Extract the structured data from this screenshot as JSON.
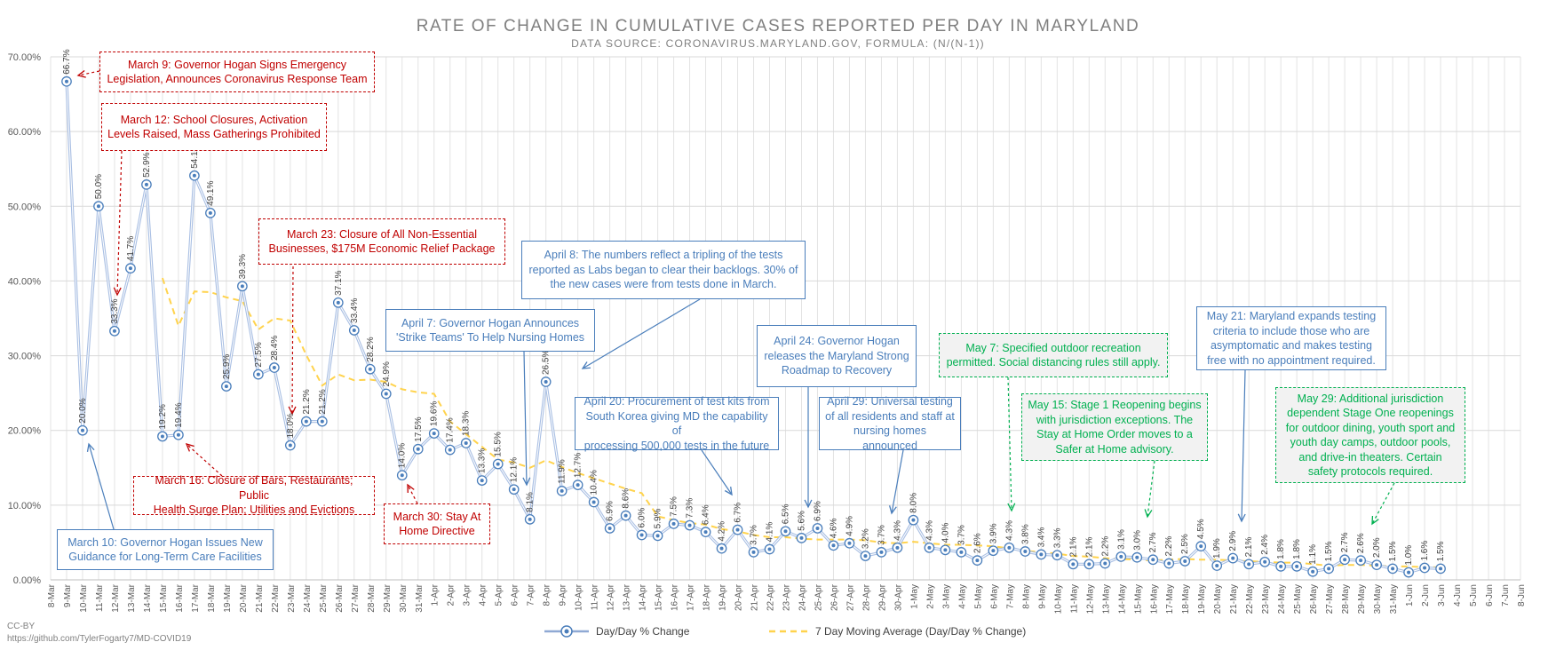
{
  "chart_data": {
    "type": "line",
    "title": "RATE OF CHANGE IN CUMULATIVE CASES REPORTED PER DAY IN MARYLAND",
    "subtitle": "DATA SOURCE: CORONAVIRUS.MARYLAND.GOV, FORMULA: (N/(N-1))",
    "ylim": [
      0,
      70
    ],
    "yticks": [
      "0.00%",
      "10.00%",
      "20.00%",
      "30.00%",
      "40.00%",
      "50.00%",
      "60.00%",
      "70.00%"
    ],
    "grid": true,
    "legend_position": "bottom",
    "categories": [
      "8-Mar",
      "9-Mar",
      "10-Mar",
      "11-Mar",
      "12-Mar",
      "13-Mar",
      "14-Mar",
      "15-Mar",
      "16-Mar",
      "17-Mar",
      "18-Mar",
      "19-Mar",
      "20-Mar",
      "21-Mar",
      "22-Mar",
      "23-Mar",
      "24-Mar",
      "25-Mar",
      "26-Mar",
      "27-Mar",
      "28-Mar",
      "29-Mar",
      "30-Mar",
      "31-Mar",
      "1-Apr",
      "2-Apr",
      "3-Apr",
      "4-Apr",
      "5-Apr",
      "6-Apr",
      "7-Apr",
      "8-Apr",
      "9-Apr",
      "10-Apr",
      "11-Apr",
      "12-Apr",
      "13-Apr",
      "14-Apr",
      "15-Apr",
      "16-Apr",
      "17-Apr",
      "18-Apr",
      "19-Apr",
      "20-Apr",
      "21-Apr",
      "22-Apr",
      "23-Apr",
      "24-Apr",
      "25-Apr",
      "26-Apr",
      "27-Apr",
      "28-Apr",
      "29-Apr",
      "30-Apr",
      "1-May",
      "2-May",
      "3-May",
      "4-May",
      "5-May",
      "6-May",
      "7-May",
      "8-May",
      "9-May",
      "10-May",
      "11-May",
      "12-May",
      "13-May",
      "14-May",
      "15-May",
      "16-May",
      "17-May",
      "18-May",
      "19-May",
      "20-May",
      "21-May",
      "22-May",
      "23-May",
      "24-May",
      "25-May",
      "26-May",
      "27-May",
      "28-May",
      "29-May",
      "30-May",
      "31-May",
      "1-Jun",
      "2-Jun",
      "3-Jun",
      "4-Jun",
      "5-Jun",
      "6-Jun",
      "7-Jun",
      "8-Jun"
    ],
    "series": [
      {
        "name": "Day/Day % Change",
        "color": "#4a7ebb",
        "values": [
          null,
          66.7,
          20.0,
          50.0,
          33.3,
          41.7,
          52.9,
          19.2,
          19.4,
          54.1,
          49.1,
          25.9,
          39.3,
          27.5,
          28.4,
          18.0,
          21.2,
          21.2,
          37.1,
          33.4,
          28.2,
          24.9,
          14.0,
          17.5,
          19.6,
          17.4,
          18.3,
          13.3,
          15.5,
          12.1,
          8.1,
          26.5,
          11.9,
          12.7,
          10.4,
          6.9,
          8.6,
          6.0,
          5.9,
          7.5,
          7.3,
          6.4,
          4.2,
          6.7,
          3.7,
          4.1,
          6.5,
          5.6,
          6.9,
          4.6,
          4.9,
          3.2,
          3.7,
          4.3,
          8.0,
          4.3,
          4.0,
          3.7,
          2.6,
          3.9,
          4.3,
          3.8,
          3.4,
          3.3,
          2.1,
          2.1,
          2.2,
          3.1,
          3.0,
          2.7,
          2.2,
          2.5,
          4.5,
          1.9,
          2.9,
          2.1,
          2.4,
          1.8,
          1.8,
          1.1,
          1.5,
          2.7,
          2.6,
          2.0,
          1.5,
          1.0,
          1.6,
          1.5,
          null,
          null,
          null,
          null,
          null
        ],
        "labels": [
          "",
          "66.7%",
          "20.0%",
          "50.0%",
          "33.3%",
          "41.7%",
          "52.9%",
          "19.2%",
          "19.4%",
          "54.1%",
          "49.1%",
          "25.9%",
          "39.3%",
          "27.5%",
          "28.4%",
          "18.0%",
          "21.2%",
          "21.2%",
          "37.1%",
          "33.4%",
          "28.2%",
          "24.9%",
          "14.0%",
          "17.5%",
          "19.6%",
          "17.4%",
          "18.3%",
          "13.3%",
          "15.5%",
          "12.1%",
          "8.1%",
          "26.5%",
          "11.9%",
          "12.7%",
          "10.4%",
          "6.9%",
          "8.6%",
          "6.0%",
          "5.9%",
          "7.5%",
          "7.3%",
          "6.4%",
          "4.2%",
          "6.7%",
          "3.7%",
          "4.1%",
          "6.5%",
          "5.6%",
          "6.9%",
          "4.6%",
          "4.9%",
          "3.2%",
          "3.7%",
          "4.3%",
          "8.0%",
          "4.3%",
          "4.0%",
          "3.7%",
          "2.6%",
          "3.9%",
          "4.3%",
          "3.8%",
          "3.4%",
          "3.3%",
          "2.1%",
          "2.1%",
          "2.2%",
          "3.1%",
          "3.0%",
          "2.7%",
          "2.2%",
          "2.5%",
          "4.5%",
          "1.9%",
          "2.9%",
          "2.1%",
          "2.4%",
          "1.8%",
          "1.8%",
          "1.1%",
          "1.5%",
          "2.7%",
          "2.6%",
          "2.0%",
          "1.5%",
          "1.0%",
          "1.6%",
          "1.5%",
          "",
          "",
          "",
          "",
          ""
        ]
      },
      {
        "name": "7 Day Moving Average (Day/Day % Change)",
        "color": "#ffd34d",
        "values": [
          null,
          null,
          null,
          null,
          null,
          null,
          null,
          40.4,
          34.0,
          38.6,
          38.5,
          37.8,
          37.3,
          33.5,
          35.0,
          34.7,
          30.1,
          26.0,
          27.5,
          26.7,
          26.8,
          26.5,
          25.5,
          25.1,
          24.9,
          21.2,
          19.5,
          17.8,
          16.1,
          15.7,
          15.0,
          16.0,
          15.1,
          14.3,
          13.6,
          12.9,
          12.2,
          11.6,
          8.5,
          8.0,
          7.6,
          7.4,
          6.8,
          6.5,
          6.0,
          5.7,
          5.7,
          5.5,
          5.4,
          5.4,
          5.4,
          5.3,
          5.0,
          4.9,
          5.1,
          4.9,
          4.7,
          4.7,
          4.6,
          4.5,
          4.2,
          3.9,
          3.7,
          3.5,
          3.2,
          3.1,
          2.9,
          2.8,
          2.7,
          2.6,
          2.7,
          2.8,
          2.7,
          2.7,
          2.6,
          2.5,
          2.4,
          2.3,
          2.3,
          2.1,
          1.9,
          2.0,
          2.0,
          1.9,
          1.8,
          1.8,
          1.7,
          1.7,
          null,
          null,
          null,
          null,
          null
        ]
      }
    ],
    "annotations": [
      {
        "text": "March 9: Governor Hogan Signs Emergency\nLegislation, Announces Coronavirus Response Team",
        "style": "red"
      },
      {
        "text": "March 12: School Closures, Activation\nLevels Raised, Mass Gatherings Prohibited",
        "style": "red"
      },
      {
        "text": "March 23: Closure of All Non-Essential\nBusinesses, $175M Economic Relief Package",
        "style": "red"
      },
      {
        "text": "March 16: Closure of Bars, Restaurants; Public\nHealth Surge Plan; Utilities and Evictions",
        "style": "red"
      },
      {
        "text": "March 30: Stay At\nHome Directive",
        "style": "red"
      },
      {
        "text": "March 10: Governor Hogan Issues New\nGuidance for Long-Term Care Facilities",
        "style": "blue"
      },
      {
        "text": "April 7: Governor Hogan Announces\n'Strike Teams' To Help Nursing Homes",
        "style": "blue"
      },
      {
        "text": "April 8: The numbers reflect a tripling of the tests\nreported as Labs began to clear their backlogs. 30% of\nthe new cases were from tests done in March.",
        "style": "blue"
      },
      {
        "text": "April 20: Procurement of test kits from\nSouth Korea giving MD the capability of\nprocessing 500,000 tests in the future",
        "style": "blue"
      },
      {
        "text": "April 24: Governor Hogan\nreleases the Maryland Strong\nRoadmap to Recovery",
        "style": "blue"
      },
      {
        "text": "April 29: Universal testing\nof all residents and staff at\nnursing homes announced",
        "style": "blue"
      },
      {
        "text": "May 7: Specified outdoor recreation\npermitted. Social distancing rules still apply.",
        "style": "green"
      },
      {
        "text": "May 15: Stage 1 Reopening begins\nwith jurisdiction exceptions. The\nStay at Home Order moves to a\nSafer at Home advisory.",
        "style": "green"
      },
      {
        "text": "May 21: Maryland expands testing\ncriteria to include those who are\nasymptomatic and makes testing\nfree with no appointment required.",
        "style": "blue"
      },
      {
        "text": "May 29: Additional jurisdiction\ndependent Stage One reopenings\nfor outdoor dining, youth sport and\nyouth day camps, outdoor pools,\nand drive-in theaters. Certain\nsafety protocols required.",
        "style": "green"
      }
    ]
  },
  "footer": {
    "license": "CC-BY",
    "source_url": "https://github.com/TylerFogarty7/MD-COVID19"
  }
}
